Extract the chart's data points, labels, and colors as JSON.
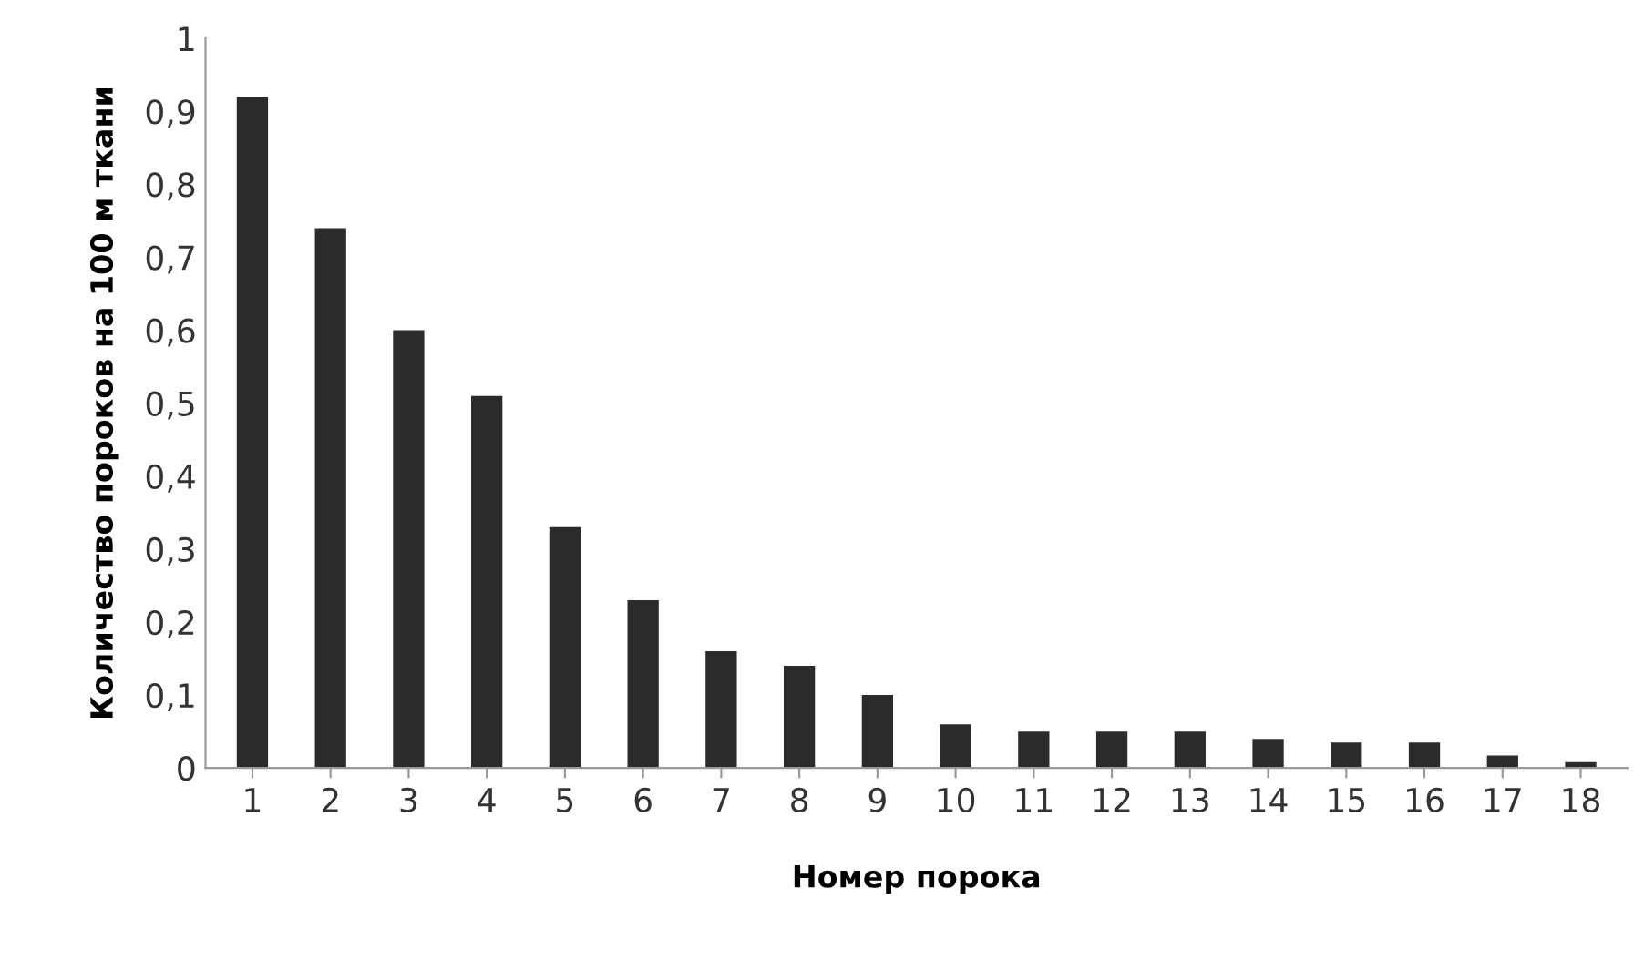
{
  "chart_data": {
    "type": "bar",
    "xlabel": "Номер порока",
    "ylabel": "Количество пороков на 100 м ткани",
    "categories": [
      "1",
      "2",
      "3",
      "4",
      "5",
      "6",
      "7",
      "8",
      "9",
      "10",
      "11",
      "12",
      "13",
      "14",
      "15",
      "16",
      "17",
      "18"
    ],
    "values": [
      0.92,
      0.74,
      0.6,
      0.51,
      0.33,
      0.23,
      0.16,
      0.14,
      0.1,
      0.06,
      0.05,
      0.05,
      0.05,
      0.04,
      0.035,
      0.035,
      0.017,
      0.008
    ],
    "color": "#2b2b2b",
    "ylim": [
      0,
      1
    ],
    "yticks": [
      0,
      {
        "value": 0.1,
        "label": "0,1"
      },
      {
        "value": 0.2,
        "label": "0,2"
      },
      {
        "value": 0.3,
        "label": "0,3"
      },
      {
        "value": 0.4,
        "label": "0,4"
      },
      {
        "value": 0.5,
        "label": "0,5"
      },
      {
        "value": 0.6,
        "label": "0,6"
      },
      {
        "value": 0.7,
        "label": "0,7"
      },
      {
        "value": 0.8,
        "label": "0,8"
      },
      {
        "value": 0.9,
        "label": "0,9"
      },
      1
    ],
    "grid": false
  }
}
